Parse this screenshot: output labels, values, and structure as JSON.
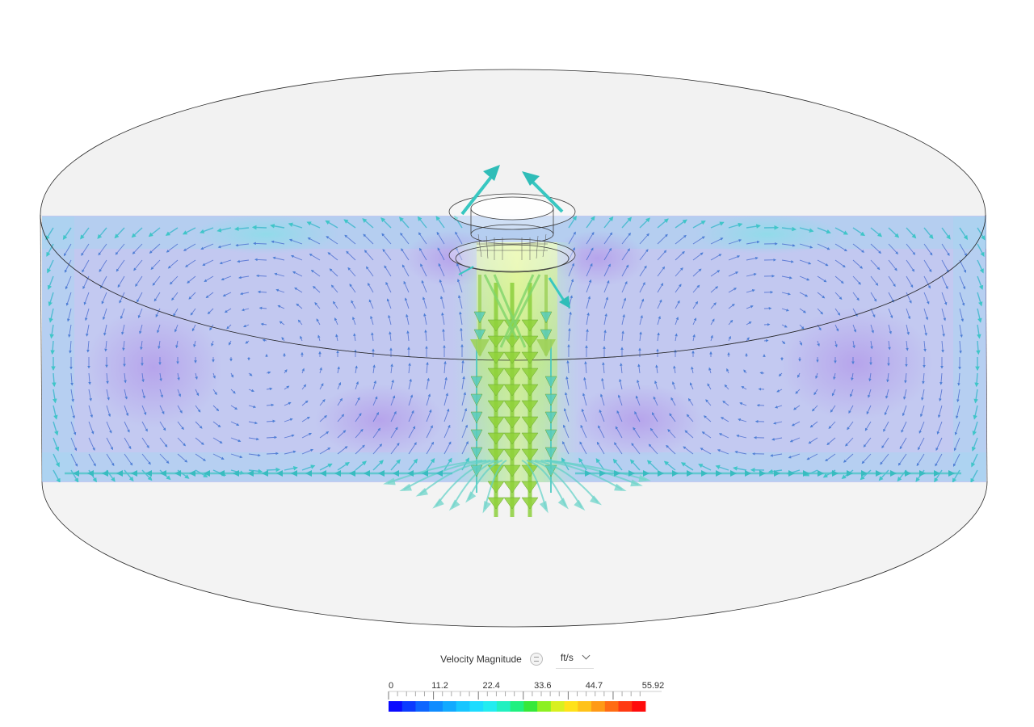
{
  "scene": {
    "colors": {
      "background": "#ffffff",
      "domain_fill": "#efefef",
      "domain_edge": "#2a2a2a",
      "plane_base": "#9aa6ee",
      "low_velocity": "#a99be8",
      "mid_velocity": "#7fd8e6",
      "jet_core": "#b8e86a",
      "arrow_slow": "#4d7fd6",
      "arrow_mid": "#3fc6c8",
      "arrow_fast": "#8fd13a"
    }
  },
  "legend": {
    "title": "Velocity Magnitude",
    "unit": "ft/s",
    "info_icon": "info-icon",
    "dropdown_icon": "chevron-down-icon",
    "min": 0,
    "max": 55.92,
    "tick_labels": [
      "0",
      "11.2",
      "22.4",
      "33.6",
      "44.7",
      "55.92"
    ],
    "colors": [
      "#0a0aff",
      "#0b3bff",
      "#0d66ff",
      "#0f8cff",
      "#12aaff",
      "#17c6ff",
      "#1ddcff",
      "#23ecf0",
      "#22f0c0",
      "#1ff080",
      "#36e83a",
      "#8cf022",
      "#d8f020",
      "#ffe21a",
      "#ffc21a",
      "#ff9a16",
      "#ff6c14",
      "#ff3a12",
      "#ff0c0c"
    ]
  }
}
